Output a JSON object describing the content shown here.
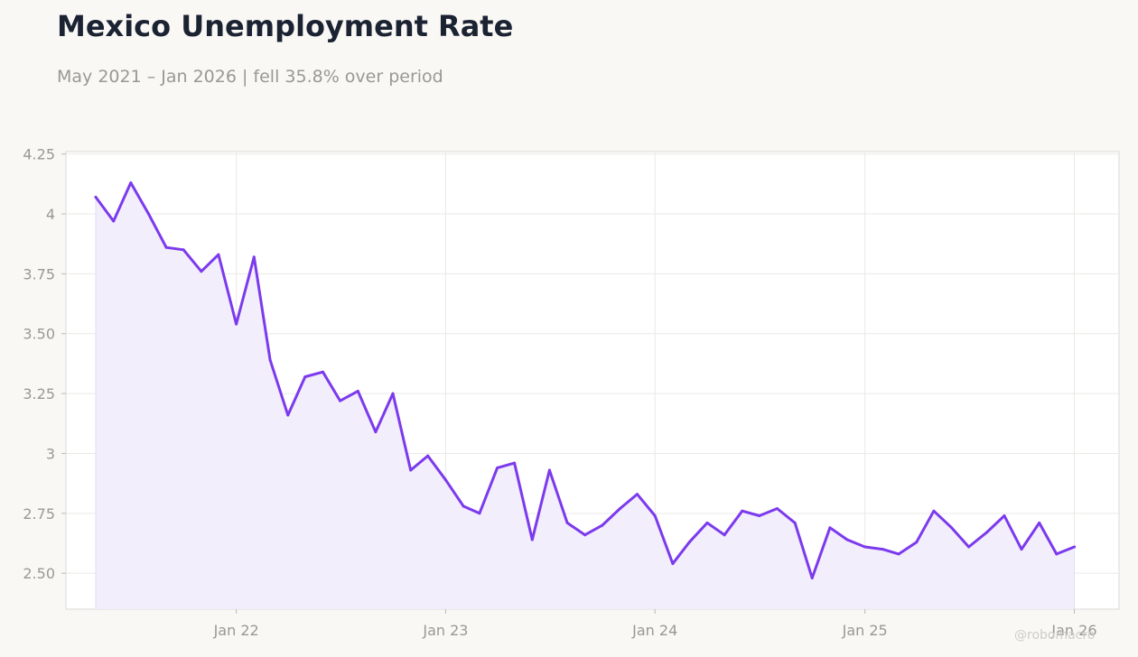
{
  "header": {
    "title": "Mexico Unemployment Rate",
    "subtitle": "May 2021 – Jan 2026 | fell 35.8% over period"
  },
  "watermark": "@robomacro",
  "colors": {
    "line": "#7c3aed",
    "area": "#f2eefc",
    "grid": "#ebe9e6",
    "frame": "#dddad5",
    "background": "#f9f8f5"
  },
  "chart_data": {
    "type": "area",
    "title": "Mexico Unemployment Rate",
    "subtitle": "May 2021 – Jan 2026 | fell 35.8% over period",
    "xlabel": "",
    "ylabel": "",
    "x_range": [
      "2021-03-10",
      "2026-03-20"
    ],
    "ylim": [
      2.35,
      4.26
    ],
    "grid": true,
    "y_ticks": [
      {
        "value": 4.25,
        "label": "4.25"
      },
      {
        "value": 4.0,
        "label": "4"
      },
      {
        "value": 3.75,
        "label": "3.75"
      },
      {
        "value": 3.5,
        "label": "3.50"
      },
      {
        "value": 3.25,
        "label": "3.25"
      },
      {
        "value": 3.0,
        "label": "3"
      },
      {
        "value": 2.75,
        "label": "2.75"
      },
      {
        "value": 2.5,
        "label": "2.50"
      }
    ],
    "x_ticks": [
      {
        "value": "2022-01-01",
        "label": "Jan 22"
      },
      {
        "value": "2023-01-01",
        "label": "Jan 23"
      },
      {
        "value": "2024-01-01",
        "label": "Jan 24"
      },
      {
        "value": "2025-01-01",
        "label": "Jan 25"
      },
      {
        "value": "2026-01-01",
        "label": "Jan 26"
      }
    ],
    "series": [
      {
        "x": [
          "2021-05-01",
          "2021-06-01",
          "2021-07-01",
          "2021-08-01",
          "2021-09-01",
          "2021-10-01",
          "2021-11-01",
          "2021-12-01",
          "2022-01-01",
          "2022-02-01",
          "2022-03-01",
          "2022-04-01",
          "2022-05-01",
          "2022-06-01",
          "2022-07-01",
          "2022-08-01",
          "2022-09-01",
          "2022-10-01",
          "2022-11-01",
          "2022-12-01",
          "2023-01-01",
          "2023-02-01",
          "2023-03-01",
          "2023-04-01",
          "2023-05-01",
          "2023-06-01",
          "2023-07-01",
          "2023-08-01",
          "2023-09-01",
          "2023-10-01",
          "2023-11-01",
          "2023-12-01",
          "2024-01-01",
          "2024-02-01",
          "2024-03-01",
          "2024-04-01",
          "2024-05-01",
          "2024-06-01",
          "2024-07-01",
          "2024-08-01",
          "2024-09-01",
          "2024-10-01",
          "2024-11-01",
          "2024-12-01",
          "2025-01-01",
          "2025-02-01",
          "2025-03-01",
          "2025-04-01",
          "2025-05-01",
          "2025-06-01",
          "2025-07-01",
          "2025-08-01",
          "2025-09-01",
          "2025-10-01",
          "2025-11-01",
          "2025-12-01",
          "2026-01-01"
        ],
        "values": [
          4.07,
          3.97,
          4.13,
          4.0,
          3.86,
          3.85,
          3.76,
          3.83,
          3.54,
          3.82,
          3.39,
          3.16,
          3.32,
          3.34,
          3.22,
          3.26,
          3.09,
          3.25,
          2.93,
          2.99,
          2.89,
          2.78,
          2.75,
          2.94,
          2.96,
          2.64,
          2.93,
          2.71,
          2.66,
          2.7,
          2.77,
          2.83,
          2.74,
          2.54,
          2.63,
          2.71,
          2.66,
          2.76,
          2.74,
          2.77,
          2.71,
          2.48,
          2.69,
          2.64,
          2.61,
          2.6,
          2.58,
          2.63,
          2.76,
          2.69,
          2.61,
          2.67,
          2.74,
          2.6,
          2.71,
          2.58,
          2.61
        ]
      }
    ]
  }
}
